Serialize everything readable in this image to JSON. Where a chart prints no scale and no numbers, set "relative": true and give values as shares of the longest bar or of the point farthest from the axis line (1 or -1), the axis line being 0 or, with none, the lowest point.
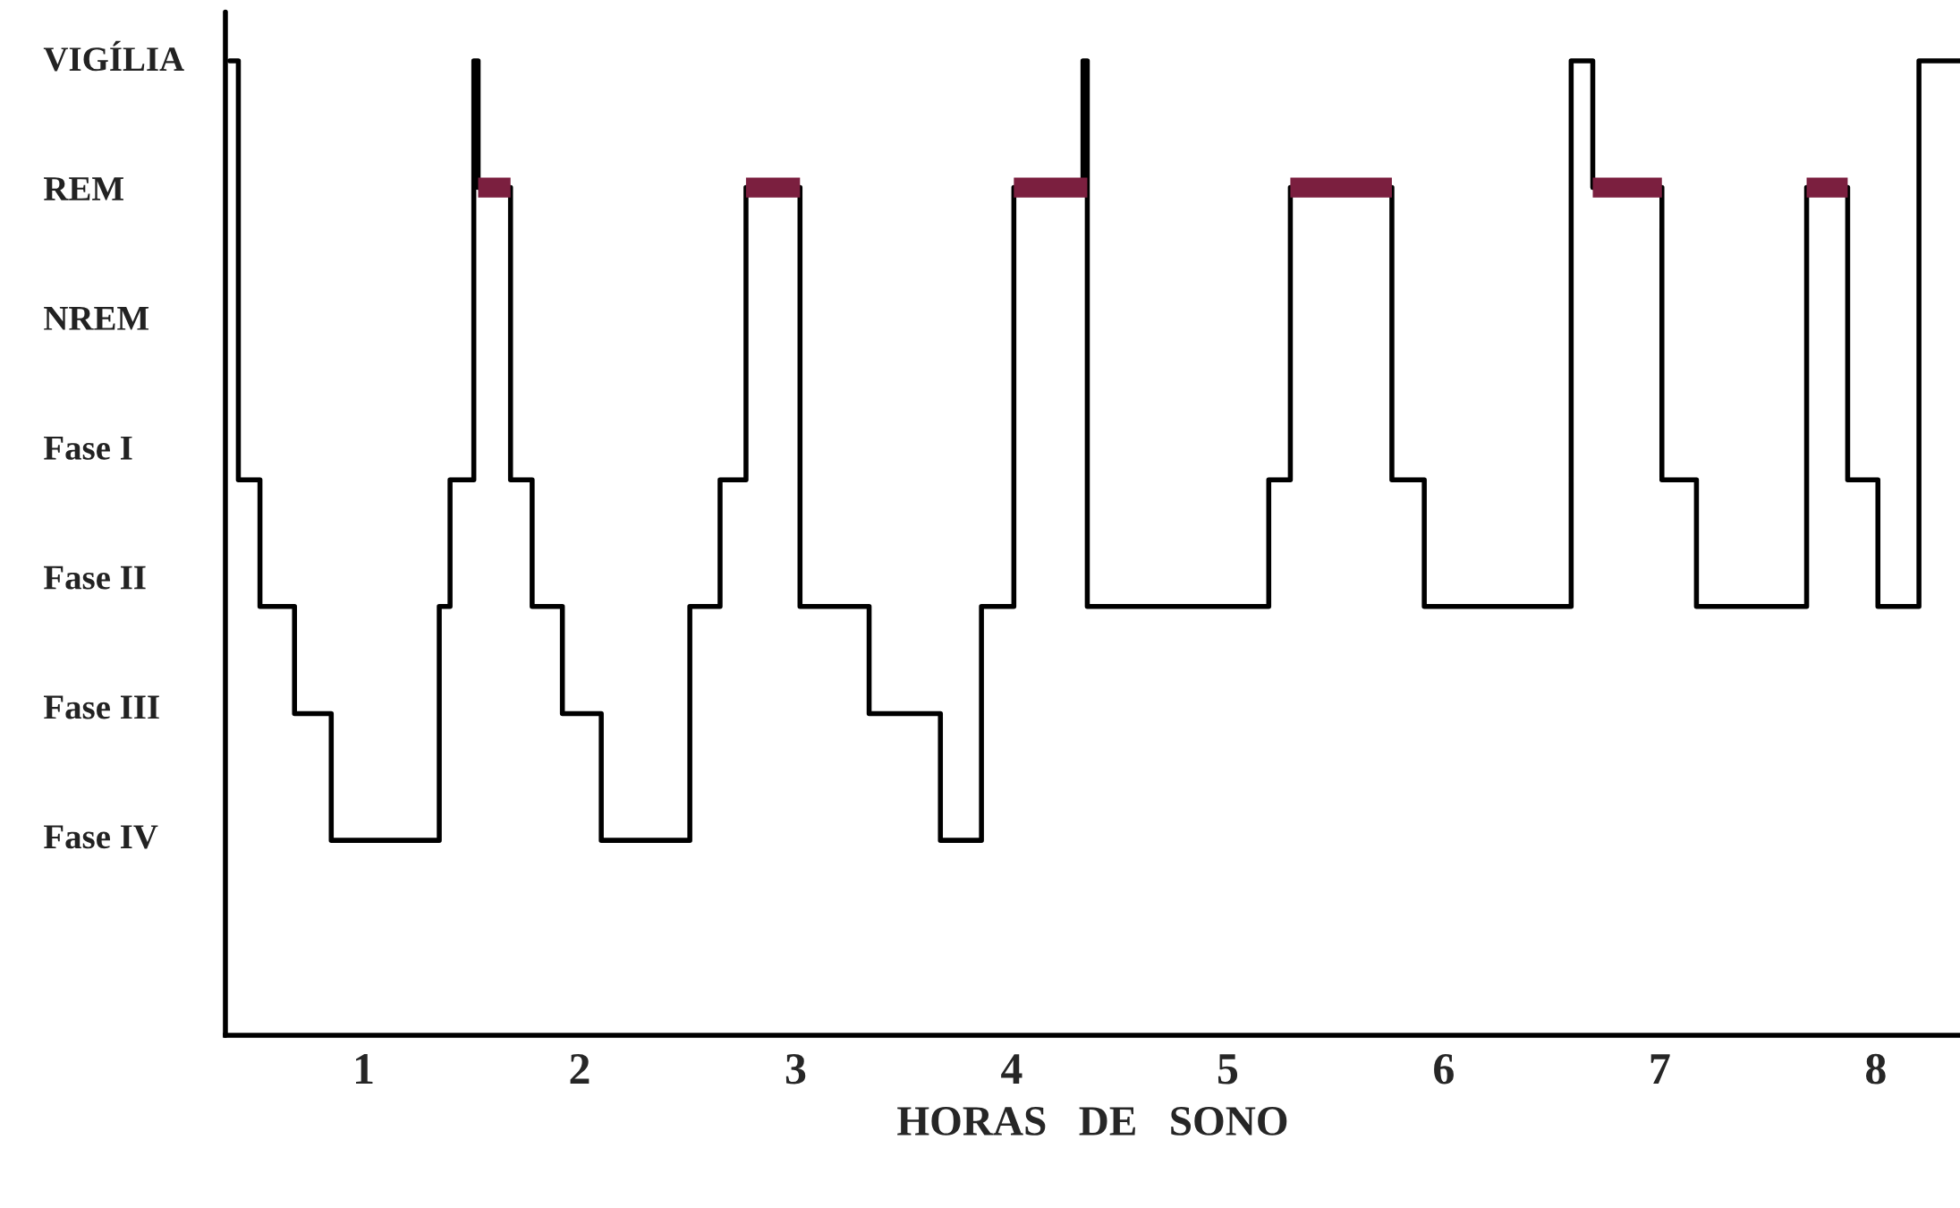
{
  "chart_data": {
    "type": "step",
    "relative": true,
    "xlabel": "HORAS   DE   SONO",
    "grid": false,
    "legend": false,
    "xlim": [
      0.36,
      8.39
    ],
    "xticks": [
      1,
      2,
      3,
      4,
      5,
      6,
      7,
      8
    ],
    "ref_lines": [
      {
        "axis": "x",
        "value": 0.36,
        "color": "#000000"
      }
    ],
    "annotations": [
      "VIGÍLIA",
      "REM",
      "NREM",
      "Fase I",
      "Fase II",
      "Fase III",
      "Fase IV"
    ],
    "series": [
      {
        "type": "line",
        "color": "#7b1f3f",
        "x": [
          1.53,
          1.68,
          1.69,
          2.77,
          3.02,
          3.03,
          4.01,
          4.35,
          4.36,
          5.29,
          5.76,
          5.77,
          6.69,
          7.01,
          7.02,
          7.68,
          7.87
        ],
        "values": [
          0.87,
          0.87,
          null,
          0.87,
          0.87,
          null,
          0.87,
          0.87,
          null,
          0.87,
          0.87,
          null,
          0.87,
          0.87,
          null,
          0.87,
          0.87
        ]
      },
      {
        "color": "#000000",
        "x": [
          0.38,
          0.42,
          0.52,
          0.68,
          0.85,
          1.35,
          1.4,
          1.51,
          1.53,
          1.68,
          1.78,
          1.92,
          2.1,
          2.51,
          2.65,
          2.77,
          3.02,
          3.34,
          3.67,
          3.86,
          4.01,
          4.33,
          4.35,
          5.19,
          5.29,
          5.76,
          5.91,
          6.59,
          6.69,
          7.01,
          7.17,
          7.68,
          7.87,
          8.01,
          8.2,
          8.39
        ],
        "values": [
          1,
          0.57,
          0.44,
          0.33,
          0.2,
          0.44,
          0.57,
          1,
          0.87,
          0.57,
          0.44,
          0.33,
          0.2,
          0.44,
          0.57,
          0.87,
          0.44,
          0.33,
          0.2,
          0.44,
          0.87,
          1,
          0.44,
          0.57,
          0.87,
          0.57,
          0.44,
          1,
          0.87,
          0.57,
          0.44,
          0.87,
          0.57,
          0.44,
          1,
          1
        ]
      }
    ]
  }
}
